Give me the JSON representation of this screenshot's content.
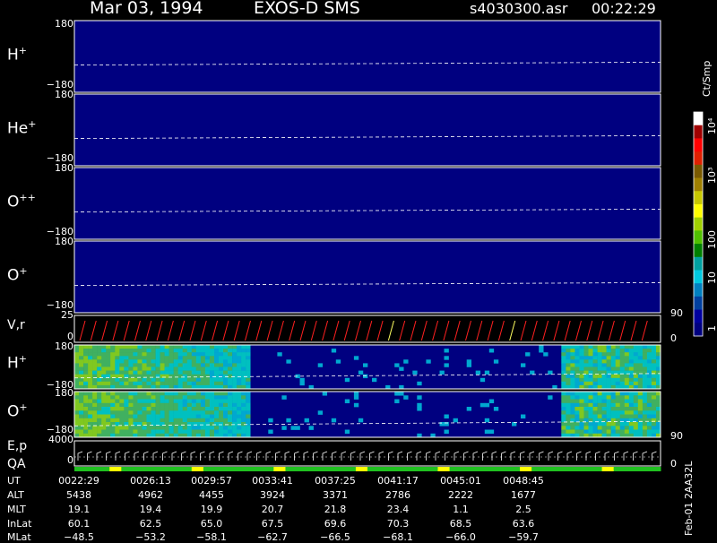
{
  "header": {
    "date": "Mar 03, 1994",
    "instrument": "EXOS-D SMS",
    "file": "s4030300.asr",
    "time": "00:22:29"
  },
  "panels": [
    {
      "label": "H",
      "sup": "+",
      "top_tick": "180",
      "bottom_tick": "−180"
    },
    {
      "label": "He",
      "sup": "+",
      "top_tick": "180",
      "bottom_tick": "−180"
    },
    {
      "label": "O",
      "sup": "++",
      "top_tick": "180",
      "bottom_tick": "−180"
    },
    {
      "label": "O",
      "sup": "+",
      "top_tick": "180",
      "bottom_tick": "−180"
    }
  ],
  "vr_panel": {
    "label": "V,r",
    "top_tick": "25",
    "bottom_tick": "0",
    "right_top": "90",
    "right_bottom": "0"
  },
  "lower_panels": [
    {
      "label": "H",
      "sup": "+",
      "top_tick": "180",
      "bottom_tick": "−180"
    },
    {
      "label": "O",
      "sup": "+",
      "top_tick": "180",
      "bottom_tick": "−180"
    }
  ],
  "ep_panel": {
    "label1": "E,p",
    "label2": "QA",
    "top_tick": "4000",
    "bottom_tick": "0",
    "right_top": "90",
    "right_bottom": "0"
  },
  "colorbar": {
    "unit": "Ct/Smp",
    "ticks": [
      "10⁴",
      "10³",
      "100",
      "10",
      "1"
    ],
    "colors": [
      "#ffffff",
      "#a00000",
      "#ff0000",
      "#e02000",
      "#7a5a00",
      "#a08000",
      "#c8c800",
      "#ffff00",
      "#a0d000",
      "#50c000",
      "#008000",
      "#00a0a0",
      "#00c8e0",
      "#0080c0",
      "#0040a0",
      "#0000a0",
      "#000080"
    ]
  },
  "footer": {
    "rows": [
      {
        "label": "UT",
        "values": [
          "0022:29",
          "0026:13",
          "0029:57",
          "0033:41",
          "0037:25",
          "0041:17",
          "0045:01",
          "0048:45"
        ]
      },
      {
        "label": "ALT",
        "values": [
          "5438",
          "4962",
          "4455",
          "3924",
          "3371",
          "2786",
          "2222",
          "1677"
        ]
      },
      {
        "label": "MLT",
        "values": [
          "19.1",
          "19.4",
          "19.9",
          "20.7",
          "21.8",
          "23.4",
          "1.1",
          "2.5"
        ]
      },
      {
        "label": "InLat",
        "values": [
          "60.1",
          "62.5",
          "65.0",
          "67.5",
          "69.6",
          "70.3",
          "68.5",
          "63.6"
        ]
      },
      {
        "label": "MLat",
        "values": [
          "−48.5",
          "−53.2",
          "−58.1",
          "−62.7",
          "−66.5",
          "−68.1",
          "−66.0",
          "−59.7"
        ]
      }
    ]
  },
  "side_note": "Feb-01 2AA32L",
  "chart_data": {
    "type": "heatmap",
    "title": "Mar 03, 1994   EXOS-D SMS",
    "x_ticks": [
      "0022:29",
      "0026:13",
      "0029:57",
      "0033:41",
      "0037:25",
      "0041:17",
      "0045:01",
      "0048:45"
    ],
    "y_range": [
      -180,
      180
    ],
    "species": [
      "H+",
      "He+",
      "O++",
      "O+"
    ],
    "color_scale": {
      "unit": "Ct/Smp",
      "min": 1,
      "max": 10000,
      "log": true
    }
  }
}
